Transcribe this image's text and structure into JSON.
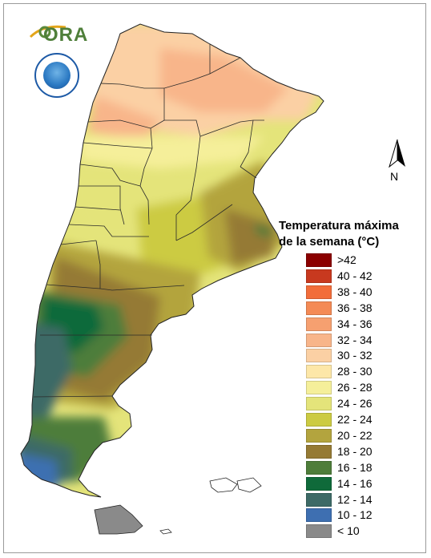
{
  "logo": {
    "text": "ORA"
  },
  "north_arrow": {
    "label": "N"
  },
  "legend": {
    "title_line1": "Temperatura máxima",
    "title_line2": "de la semana (°C)",
    "items": [
      {
        "label": ">42",
        "color": "#8b0000"
      },
      {
        "label": "40 - 42",
        "color": "#c8391f"
      },
      {
        "label": "38 - 40",
        "color": "#f26d3a"
      },
      {
        "label": "36 - 38",
        "color": "#f48a55"
      },
      {
        "label": "34 - 36",
        "color": "#f6a070"
      },
      {
        "label": "32 - 34",
        "color": "#f8b58a"
      },
      {
        "label": "30 - 32",
        "color": "#fbd0a4"
      },
      {
        "label": "28 - 30",
        "color": "#fde7a8"
      },
      {
        "label": "26 - 28",
        "color": "#f5ef9a"
      },
      {
        "label": "24 - 26",
        "color": "#e4e47a"
      },
      {
        "label": "22 - 24",
        "color": "#cccb42"
      },
      {
        "label": "20 - 22",
        "color": "#b3a43e"
      },
      {
        "label": "18 - 20",
        "color": "#957a34"
      },
      {
        "label": "16 - 18",
        "color": "#4e7d3a"
      },
      {
        "label": "14 - 16",
        "color": "#0f6a3a"
      },
      {
        "label": "12 - 14",
        "color": "#3d6a66"
      },
      {
        "label": "10 - 12",
        "color": "#3e6fb1"
      },
      {
        "label": "< 10",
        "color": "#8a8a8a"
      }
    ]
  }
}
